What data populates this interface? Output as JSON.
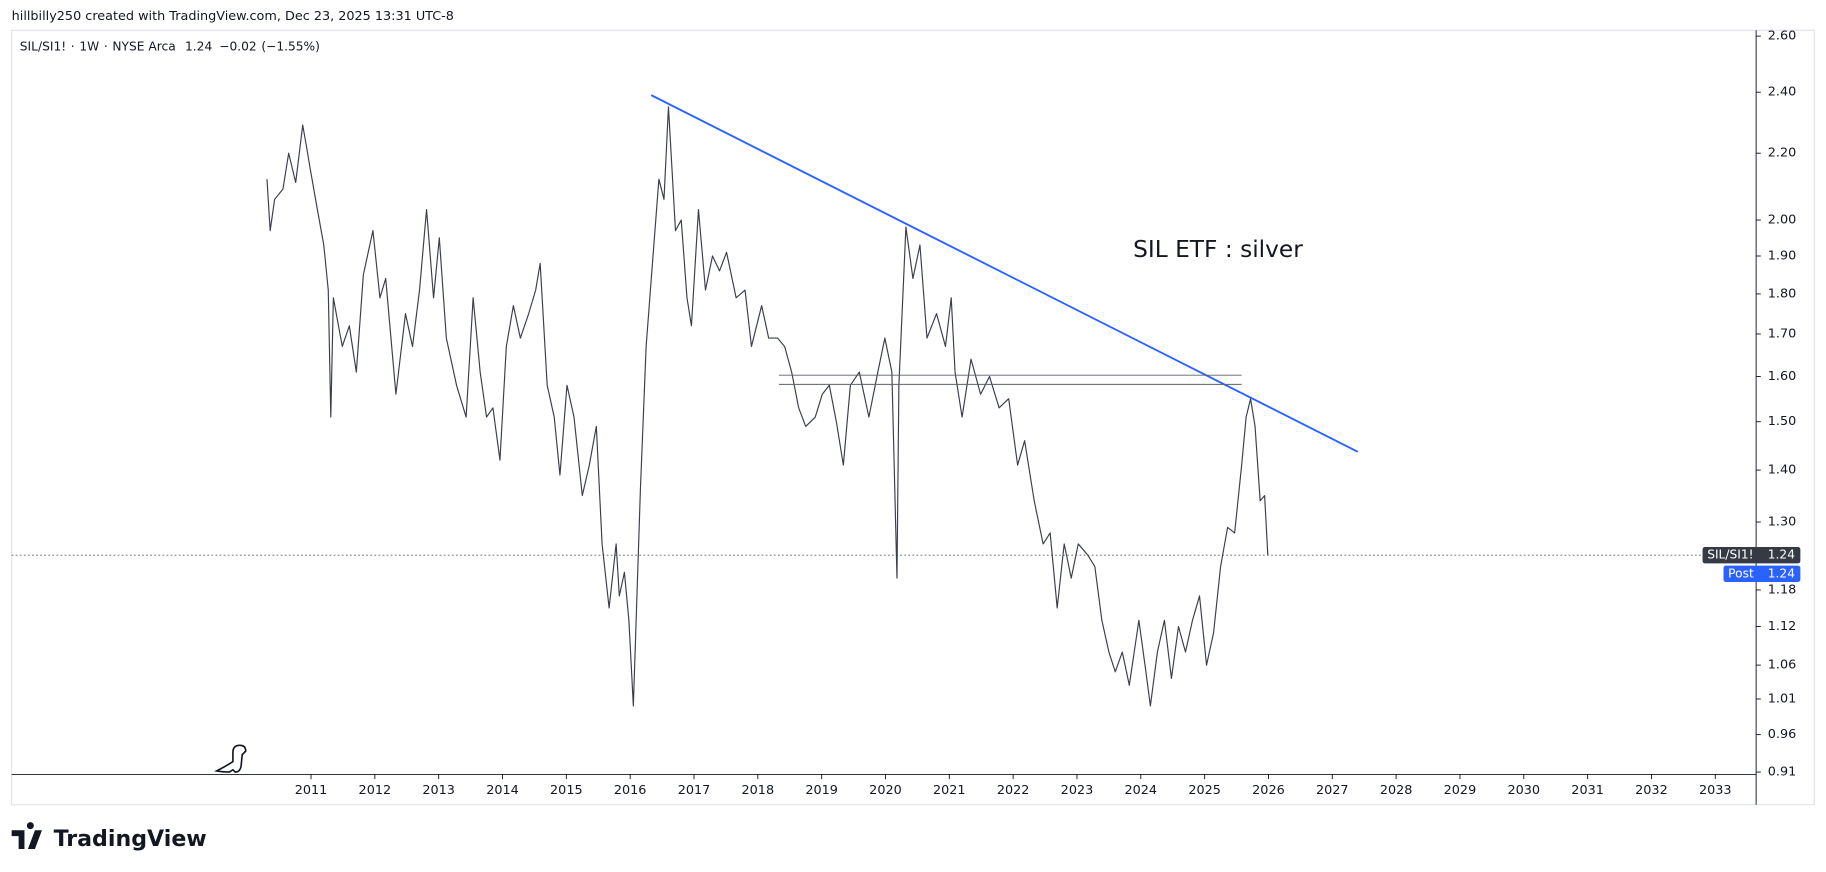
{
  "header": {
    "credit": "hillbilly250 created with TradingView.com, Dec 23, 2025 13:31 UTC-8",
    "brand": "TradingView"
  },
  "chart_data": {
    "type": "line",
    "legend": {
      "interval": "1W",
      "exchange": "NYSE Arca",
      "last": "1.24",
      "change": "−0.02",
      "change_pct": "(−1.55%)"
    },
    "annotation": "SIL ETF : silver",
    "log_scale": true,
    "xlim": [
      2006.31,
      2033.64
    ],
    "xticks": [
      2011,
      2012,
      2013,
      2014,
      2015,
      2016,
      2017,
      2018,
      2019,
      2020,
      2021,
      2022,
      2023,
      2024,
      2025,
      2026,
      2027,
      2028,
      2029,
      2030,
      2031,
      2032,
      2033
    ],
    "ylim": [
      0.91,
      2.6
    ],
    "yticks": [
      {
        "value": 2.6,
        "label": "2.60"
      },
      {
        "value": 2.4,
        "label": "2.40"
      },
      {
        "value": 2.2,
        "label": "2.20"
      },
      {
        "value": 2.0,
        "label": "2.00"
      },
      {
        "value": 1.9,
        "label": "1.90"
      },
      {
        "value": 1.8,
        "label": "1.80"
      },
      {
        "value": 1.7,
        "label": "1.70"
      },
      {
        "value": 1.6,
        "label": "1.60"
      },
      {
        "value": 1.5,
        "label": "1.50"
      },
      {
        "value": 1.4,
        "label": "1.40"
      },
      {
        "value": 1.3,
        "label": "1.30"
      },
      {
        "value": 1.18,
        "label": "1.18"
      },
      {
        "value": 1.12,
        "label": "1.12"
      },
      {
        "value": 1.06,
        "label": "1.06"
      },
      {
        "value": 1.01,
        "label": "1.01"
      },
      {
        "value": 0.96,
        "label": "0.96"
      },
      {
        "value": 0.91,
        "label": "0.91"
      }
    ],
    "last_price": 1.24,
    "price_labels": [
      {
        "name": "SIL/SI1!",
        "label": "1.24",
        "color": "#363a45"
      },
      {
        "name": "Post",
        "label": "1.24",
        "color": "#2962ff"
      }
    ],
    "series": [
      {
        "name": "SIL/SI1!",
        "color": "#3b3f4a",
        "x": [
          2010.31,
          2010.36,
          2010.43,
          2010.56,
          2010.65,
          2010.76,
          2010.87,
          2010.93,
          2010.98,
          2011.09,
          2011.2,
          2011.27,
          2011.31,
          2011.35,
          2011.49,
          2011.6,
          2011.71,
          2011.82,
          2011.97,
          2012.08,
          2012.17,
          2012.33,
          2012.48,
          2012.59,
          2012.7,
          2012.81,
          2012.92,
          2013.01,
          2013.12,
          2013.28,
          2013.43,
          2013.54,
          2013.65,
          2013.75,
          2013.85,
          2013.96,
          2014.06,
          2014.17,
          2014.28,
          2014.41,
          2014.52,
          2014.59,
          2014.7,
          2014.81,
          2014.9,
          2015.01,
          2015.12,
          2015.25,
          2015.36,
          2015.47,
          2015.56,
          2015.67,
          2015.78,
          2015.83,
          2015.91,
          2015.98,
          2016.05,
          2016.16,
          2016.25,
          2016.34,
          2016.45,
          2016.53,
          2016.6,
          2016.71,
          2016.8,
          2016.89,
          2016.96,
          2017.07,
          2017.18,
          2017.29,
          2017.4,
          2017.51,
          2017.66,
          2017.8,
          2017.9,
          2018.06,
          2018.17,
          2018.31,
          2018.42,
          2018.53,
          2018.64,
          2018.75,
          2018.9,
          2019.01,
          2019.12,
          2019.23,
          2019.34,
          2019.45,
          2019.59,
          2019.74,
          2019.88,
          2019.99,
          2020.1,
          2020.18,
          2020.21,
          2020.32,
          2020.43,
          2020.54,
          2020.65,
          2020.8,
          2020.94,
          2021.03,
          2021.09,
          2021.2,
          2021.34,
          2021.49,
          2021.63,
          2021.78,
          2021.93,
          2022.07,
          2022.18,
          2022.33,
          2022.47,
          2022.58,
          2022.69,
          2022.8,
          2022.91,
          2023.02,
          2023.17,
          2023.28,
          2023.39,
          2023.5,
          2023.6,
          2023.71,
          2023.82,
          2023.97,
          2024.08,
          2024.15,
          2024.26,
          2024.37,
          2024.48,
          2024.59,
          2024.7,
          2024.81,
          2024.92,
          2025.03,
          2025.14,
          2025.25,
          2025.36,
          2025.47,
          2025.58,
          2025.65,
          2025.72,
          2025.79,
          2025.87,
          2025.94,
          2025.99
        ],
        "values": [
          2.12,
          1.97,
          2.06,
          2.09,
          2.2,
          2.11,
          2.29,
          2.22,
          2.16,
          2.04,
          1.93,
          1.81,
          1.51,
          1.79,
          1.67,
          1.72,
          1.61,
          1.85,
          1.97,
          1.79,
          1.84,
          1.56,
          1.75,
          1.67,
          1.81,
          2.03,
          1.79,
          1.95,
          1.69,
          1.58,
          1.51,
          1.79,
          1.61,
          1.51,
          1.53,
          1.42,
          1.67,
          1.77,
          1.69,
          1.75,
          1.81,
          1.88,
          1.58,
          1.51,
          1.39,
          1.58,
          1.51,
          1.35,
          1.41,
          1.49,
          1.26,
          1.15,
          1.26,
          1.17,
          1.21,
          1.13,
          1.0,
          1.36,
          1.67,
          1.86,
          2.12,
          2.06,
          2.35,
          1.97,
          2.0,
          1.79,
          1.72,
          2.03,
          1.81,
          1.9,
          1.86,
          1.91,
          1.79,
          1.81,
          1.67,
          1.77,
          1.69,
          1.69,
          1.67,
          1.61,
          1.53,
          1.49,
          1.51,
          1.56,
          1.58,
          1.5,
          1.41,
          1.58,
          1.61,
          1.51,
          1.61,
          1.69,
          1.61,
          1.2,
          1.58,
          1.98,
          1.84,
          1.93,
          1.69,
          1.75,
          1.67,
          1.79,
          1.61,
          1.51,
          1.64,
          1.56,
          1.6,
          1.53,
          1.55,
          1.41,
          1.46,
          1.34,
          1.26,
          1.28,
          1.15,
          1.26,
          1.2,
          1.26,
          1.24,
          1.22,
          1.13,
          1.08,
          1.05,
          1.08,
          1.03,
          1.13,
          1.05,
          1.0,
          1.08,
          1.13,
          1.04,
          1.12,
          1.08,
          1.13,
          1.17,
          1.06,
          1.11,
          1.22,
          1.29,
          1.28,
          1.41,
          1.51,
          1.55,
          1.49,
          1.34,
          1.35,
          1.24
        ]
      }
    ],
    "drawings": [
      {
        "color": "#2962ff",
        "x": [
          2016.33,
          2027.4
        ],
        "values": [
          2.39,
          1.437
        ]
      },
      {
        "color": "#5d606b",
        "x": [
          2018.33,
          2025.58
        ],
        "values": [
          1.603,
          1.603
        ]
      },
      {
        "color": "#5d606b",
        "x": [
          2018.33,
          2025.58
        ],
        "values": [
          1.582,
          1.582
        ]
      }
    ]
  }
}
